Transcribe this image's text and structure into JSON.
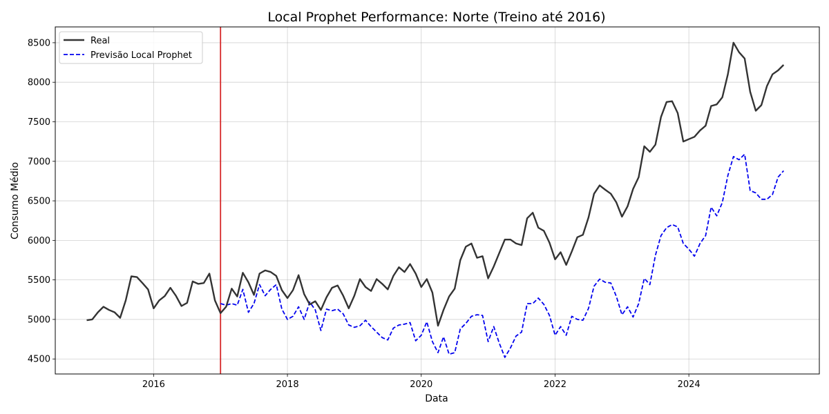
{
  "chart_data": {
    "type": "line",
    "title": "Local Prophet Performance: Norte (Treino até 2016)",
    "xlabel": "Data",
    "ylabel": "Consumo Médio",
    "xlim": [
      2014.53,
      2025.95
    ],
    "ylim": [
      4310,
      8700
    ],
    "x_ticks": [
      2016,
      2018,
      2020,
      2022,
      2024
    ],
    "y_ticks": [
      4500,
      5000,
      5500,
      6000,
      6500,
      7000,
      7500,
      8000,
      8500
    ],
    "grid": true,
    "legend_position": "top-left",
    "split_date": 2017.0,
    "split_color": "#d62728",
    "series": [
      {
        "name": "Real",
        "color": "#333333",
        "style": "solid",
        "start": 2015.0,
        "step_months": 1,
        "values": [
          4990,
          5000,
          5090,
          5160,
          5120,
          5090,
          5020,
          5240,
          5545,
          5535,
          5460,
          5380,
          5140,
          5240,
          5295,
          5400,
          5300,
          5170,
          5210,
          5480,
          5450,
          5460,
          5580,
          5240,
          5080,
          5160,
          5390,
          5290,
          5590,
          5470,
          5310,
          5580,
          5620,
          5600,
          5550,
          5370,
          5270,
          5370,
          5560,
          5320,
          5190,
          5230,
          5120,
          5280,
          5400,
          5430,
          5300,
          5140,
          5300,
          5510,
          5410,
          5360,
          5510,
          5450,
          5380,
          5550,
          5660,
          5600,
          5700,
          5580,
          5410,
          5510,
          5340,
          4920,
          5120,
          5290,
          5390,
          5750,
          5920,
          5960,
          5780,
          5800,
          5520,
          5670,
          5840,
          6010,
          6010,
          5960,
          5940,
          6280,
          6350,
          6160,
          6120,
          5970,
          5760,
          5850,
          5690,
          5860,
          6040,
          6070,
          6290,
          6590,
          6695,
          6640,
          6590,
          6480,
          6300,
          6430,
          6650,
          6800,
          7190,
          7120,
          7210,
          7560,
          7750,
          7760,
          7610,
          7250,
          7280,
          7310,
          7390,
          7450,
          7700,
          7720,
          7810,
          8100,
          8500,
          8380,
          8300,
          7880,
          7640,
          7710,
          7950,
          8100,
          8150,
          8220
        ]
      },
      {
        "name": "Previsão Local Prophet",
        "color": "#0000ee",
        "style": "dashed",
        "start": 2017.0,
        "step_months": 1,
        "values": [
          5200,
          5180,
          5200,
          5180,
          5380,
          5090,
          5200,
          5440,
          5300,
          5380,
          5440,
          5130,
          5000,
          5040,
          5160,
          5000,
          5220,
          5120,
          4860,
          5130,
          5110,
          5130,
          5070,
          4930,
          4900,
          4920,
          4990,
          4910,
          4840,
          4770,
          4740,
          4890,
          4930,
          4940,
          4960,
          4730,
          4800,
          4970,
          4720,
          4580,
          4780,
          4560,
          4580,
          4880,
          4950,
          5040,
          5060,
          5050,
          4720,
          4910,
          4700,
          4520,
          4640,
          4790,
          4840,
          5200,
          5200,
          5270,
          5190,
          5050,
          4800,
          4910,
          4800,
          5040,
          5000,
          4990,
          5140,
          5420,
          5510,
          5470,
          5460,
          5290,
          5060,
          5160,
          5030,
          5200,
          5520,
          5440,
          5810,
          6060,
          6160,
          6200,
          6170,
          5960,
          5890,
          5800,
          5960,
          6060,
          6420,
          6310,
          6480,
          6820,
          7060,
          7020,
          7090,
          6630,
          6600,
          6520,
          6520,
          6580,
          6800,
          6880
        ]
      }
    ]
  }
}
